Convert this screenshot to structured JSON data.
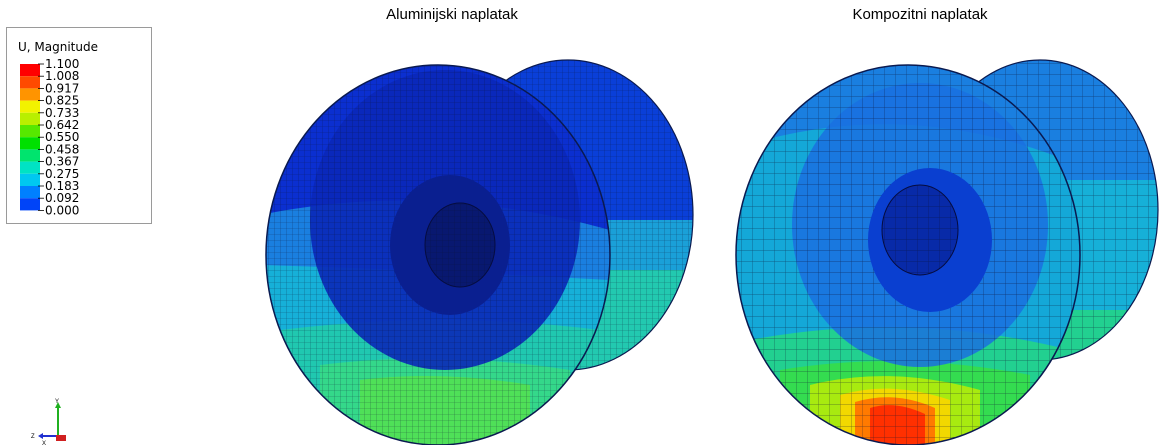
{
  "legend": {
    "title": "U, Magnitude",
    "values": [
      "1.100",
      "1.008",
      "0.917",
      "0.825",
      "0.733",
      "0.642",
      "0.550",
      "0.458",
      "0.367",
      "0.275",
      "0.183",
      "0.092",
      "0.000"
    ],
    "colors": [
      "#ff0000",
      "#ff4a00",
      "#ff9400",
      "#f2f200",
      "#b9ef00",
      "#56e800",
      "#00e000",
      "#00e46e",
      "#00e3c4",
      "#00c8f0",
      "#0080ff",
      "#0044f8",
      "#0000e6"
    ]
  },
  "panels": {
    "left_title": "Aluminijski naplatak",
    "right_title": "Kompozitni naplatak"
  },
  "triad": {
    "y": "Y",
    "z": "Z",
    "x": "X"
  }
}
